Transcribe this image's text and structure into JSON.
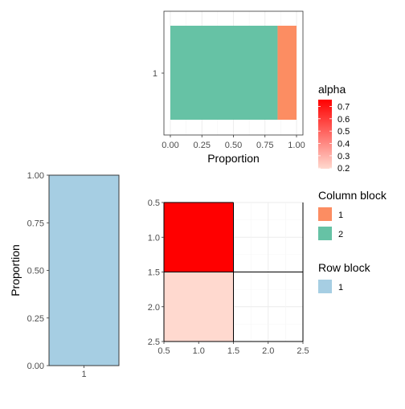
{
  "chart_data": [
    {
      "type": "bar",
      "orientation": "horizontal",
      "stacked": true,
      "categories": [
        "1"
      ],
      "series": [
        {
          "name": "2",
          "values": [
            0.85
          ]
        },
        {
          "name": "1",
          "values": [
            0.15
          ]
        }
      ],
      "xlabel": "Proportion",
      "xlim": [
        0,
        1
      ],
      "xticks": [
        "0.00",
        "0.25",
        "0.50",
        "0.75",
        "1.00"
      ],
      "legend_title": "Column block",
      "colors": {
        "1": "#fc8d62",
        "2": "#66c2a5"
      },
      "grid": true
    },
    {
      "type": "bar",
      "categories": [
        "1"
      ],
      "values": [
        1.0
      ],
      "ylabel": "Proportion",
      "ylim": [
        0,
        1
      ],
      "yticks": [
        "0.00",
        "0.25",
        "0.50",
        "0.75",
        "1.00"
      ],
      "legend_title": "Row block",
      "colors": {
        "1": "#a6cee3"
      },
      "grid": false
    },
    {
      "type": "heatmap",
      "xlim": [
        0.5,
        2.5
      ],
      "ylim": [
        0.5,
        2.5
      ],
      "y_reversed": true,
      "xticks": [
        "0.5",
        "1.0",
        "1.5",
        "2.0",
        "2.5"
      ],
      "yticks": [
        "0.5",
        "1.0",
        "1.5",
        "2.0",
        "2.5"
      ],
      "cells": [
        {
          "x": 1,
          "y": 1,
          "alpha": 0.75
        },
        {
          "x": 1,
          "y": 2,
          "alpha": 0.2
        }
      ],
      "legend_title": "alpha",
      "alpha_range": [
        0.2,
        0.75
      ],
      "legend_ticks": [
        "0.7",
        "0.6",
        "0.5",
        "0.4",
        "0.3",
        "0.2"
      ],
      "fill_color": "#ff0000",
      "grid": true
    }
  ],
  "legends": {
    "alpha_title": "alpha",
    "alpha_ticks": [
      "0.7",
      "0.6",
      "0.5",
      "0.4",
      "0.3",
      "0.2"
    ],
    "column_title": "Column block",
    "column_items": [
      {
        "label": "1",
        "color": "#fc8d62"
      },
      {
        "label": "2",
        "color": "#66c2a5"
      }
    ],
    "row_title": "Row block",
    "row_items": [
      {
        "label": "1",
        "color": "#a6cee3"
      }
    ]
  }
}
